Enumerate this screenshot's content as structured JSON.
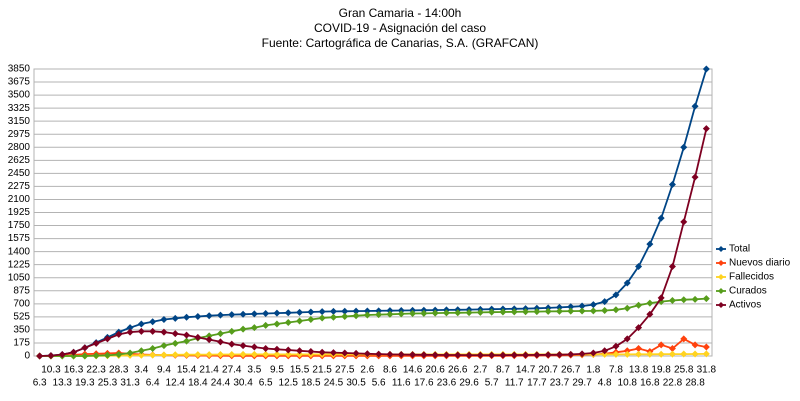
{
  "chart_data": {
    "type": "line",
    "title": "Gran Camaria - 14:00h",
    "subtitle": [
      "COVID-19 - Asignación del caso",
      "Fuente: Cartográfica de Canarias, S.A. (GRAFCAN)"
    ],
    "categories": [
      "6.3",
      "10.3",
      "13.3",
      "16.3",
      "19.3",
      "22.3",
      "25.3",
      "28.3",
      "31.3",
      "3.4",
      "6.4",
      "9.4",
      "12.4",
      "15.4",
      "18.4",
      "21.4",
      "24.4",
      "27.4",
      "30.4",
      "3.5",
      "6.5",
      "9.5",
      "12.5",
      "15.5",
      "18.5",
      "21.5",
      "24.5",
      "27.5",
      "30.5",
      "2.6",
      "5.6",
      "8.6",
      "11.6",
      "14.6",
      "17.6",
      "20.6",
      "23.6",
      "26.6",
      "29.6",
      "2.7",
      "5.7",
      "8.7",
      "11.7",
      "14.7",
      "17.7",
      "20.7",
      "23.7",
      "26.7",
      "29.7",
      "1.8",
      "4.8",
      "7.8",
      "10.8",
      "13.8",
      "16.8",
      "19.8",
      "22.8",
      "25.8",
      "28.8",
      "31.8"
    ],
    "series": [
      {
        "name": "Total",
        "color": "#004586",
        "values": [
          0,
          5,
          20,
          50,
          110,
          180,
          250,
          320,
          380,
          430,
          460,
          490,
          505,
          520,
          530,
          540,
          548,
          555,
          560,
          565,
          570,
          575,
          580,
          585,
          590,
          595,
          598,
          600,
          602,
          604,
          606,
          608,
          610,
          612,
          614,
          616,
          618,
          620,
          622,
          625,
          628,
          630,
          633,
          636,
          640,
          645,
          652,
          660,
          670,
          690,
          730,
          820,
          980,
          1200,
          1500,
          1850,
          2300,
          2800,
          3350,
          3850
        ]
      },
      {
        "name": "Nuevos diario",
        "color": "#ff420e",
        "values": [
          0,
          2,
          8,
          15,
          25,
          30,
          35,
          40,
          30,
          20,
          15,
          12,
          10,
          8,
          6,
          5,
          4,
          3,
          3,
          2,
          2,
          2,
          2,
          1,
          1,
          1,
          1,
          1,
          1,
          1,
          1,
          1,
          1,
          1,
          1,
          1,
          1,
          1,
          2,
          2,
          3,
          3,
          4,
          5,
          6,
          8,
          10,
          12,
          15,
          20,
          30,
          50,
          70,
          100,
          60,
          150,
          100,
          230,
          150,
          120
        ]
      },
      {
        "name": "Fallecidos",
        "color": "#ffd320",
        "values": [
          0,
          0,
          0,
          0,
          1,
          2,
          4,
          6,
          8,
          10,
          12,
          14,
          16,
          17,
          18,
          19,
          20,
          20,
          21,
          21,
          21,
          21,
          21,
          21,
          21,
          22,
          22,
          22,
          22,
          22,
          22,
          22,
          22,
          22,
          22,
          22,
          22,
          22,
          22,
          22,
          22,
          22,
          22,
          22,
          22,
          22,
          22,
          22,
          22,
          22,
          22,
          22,
          22,
          23,
          23,
          24,
          25,
          26,
          27,
          28
        ]
      },
      {
        "name": "Curados",
        "color": "#579d1c",
        "values": [
          0,
          0,
          0,
          0,
          0,
          5,
          10,
          20,
          40,
          70,
          100,
          140,
          170,
          200,
          240,
          270,
          300,
          330,
          360,
          380,
          410,
          430,
          450,
          470,
          490,
          510,
          520,
          530,
          540,
          550,
          555,
          560,
          565,
          570,
          572,
          575,
          578,
          580,
          582,
          585,
          588,
          590,
          592,
          594,
          596,
          598,
          600,
          602,
          604,
          605,
          610,
          620,
          640,
          680,
          710,
          730,
          745,
          755,
          760,
          770
        ]
      },
      {
        "name": "Activos",
        "color": "#7e0021",
        "values": [
          0,
          5,
          20,
          50,
          110,
          170,
          230,
          290,
          320,
          330,
          330,
          320,
          300,
          280,
          250,
          220,
          190,
          160,
          140,
          120,
          100,
          90,
          80,
          70,
          60,
          50,
          45,
          40,
          35,
          30,
          25,
          22,
          20,
          18,
          16,
          15,
          14,
          13,
          12,
          12,
          12,
          12,
          13,
          14,
          15,
          16,
          18,
          22,
          28,
          40,
          70,
          130,
          230,
          380,
          560,
          780,
          1200,
          1800,
          2400,
          3050
        ]
      }
    ],
    "ylim": [
      0,
      3850
    ],
    "yticks": [
      0,
      175,
      350,
      525,
      700,
      875,
      1050,
      1225,
      1400,
      1575,
      1750,
      1925,
      2100,
      2275,
      2450,
      2625,
      2800,
      2975,
      3150,
      3325,
      3500,
      3675,
      3850
    ],
    "grid": true,
    "legend": "right"
  }
}
